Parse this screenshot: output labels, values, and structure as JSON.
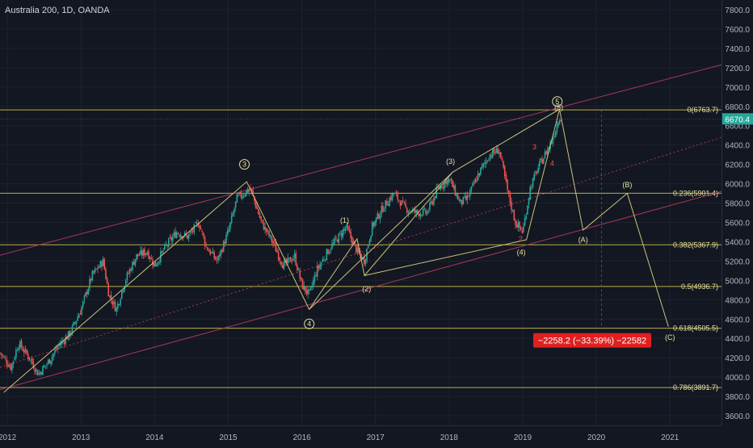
{
  "header": {
    "symbol_title": "Australia 200, 1D, OANDA"
  },
  "colors": {
    "background": "#131722",
    "grid": "#1e222d",
    "axis_text": "#b2b5be",
    "up_candle": "#26a69a",
    "down_candle": "#ef5350",
    "fib_line": "#b7b14a",
    "channel_line": "#a8385a",
    "wave_line": "#c9c27a",
    "price_badge": "#26a69a",
    "measure_badge": "#e02020"
  },
  "chart_data": {
    "type": "candlestick",
    "title": "Australia 200, 1D, OANDA",
    "xlabel": "",
    "ylabel": "",
    "xlim": [
      2011.9,
      2021.7
    ],
    "ylim": [
      3500,
      7900
    ],
    "grid": true,
    "y_ticks": [
      "3600.0",
      "3800.0",
      "4000.0",
      "4200.0",
      "4400.0",
      "4600.0",
      "4800.0",
      "5000.0",
      "5200.0",
      "5400.0",
      "5600.0",
      "5800.0",
      "6000.0",
      "6200.0",
      "6400.0",
      "6600.0",
      "6800.0",
      "7000.0",
      "7200.0",
      "7400.0",
      "7600.0",
      "7800.0"
    ],
    "x_ticks": [
      {
        "label": "2012",
        "x": 2012.0
      },
      {
        "label": "2013",
        "x": 2013.0
      },
      {
        "label": "2014",
        "x": 2014.0
      },
      {
        "label": "2015",
        "x": 2015.0
      },
      {
        "label": "2016",
        "x": 2016.0
      },
      {
        "label": "2017",
        "x": 2017.0
      },
      {
        "label": "2018",
        "x": 2018.0
      },
      {
        "label": "2019",
        "x": 2019.0
      },
      {
        "label": "2020",
        "x": 2020.0
      },
      {
        "label": "2021",
        "x": 2021.0
      }
    ],
    "price_path": [
      [
        2011.9,
        4250
      ],
      [
        2012.05,
        4100
      ],
      [
        2012.15,
        4350
      ],
      [
        2012.3,
        4200
      ],
      [
        2012.42,
        4030
      ],
      [
        2012.55,
        4150
      ],
      [
        2012.7,
        4330
      ],
      [
        2012.85,
        4450
      ],
      [
        2013.0,
        4700
      ],
      [
        2013.15,
        5050
      ],
      [
        2013.3,
        5200
      ],
      [
        2013.38,
        4850
      ],
      [
        2013.48,
        4700
      ],
      [
        2013.6,
        5000
      ],
      [
        2013.75,
        5250
      ],
      [
        2013.9,
        5300
      ],
      [
        2014.0,
        5150
      ],
      [
        2014.15,
        5350
      ],
      [
        2014.3,
        5500
      ],
      [
        2014.45,
        5450
      ],
      [
        2014.6,
        5600
      ],
      [
        2014.7,
        5350
      ],
      [
        2014.85,
        5200
      ],
      [
        2015.0,
        5500
      ],
      [
        2015.12,
        5850
      ],
      [
        2015.3,
        5950
      ],
      [
        2015.45,
        5600
      ],
      [
        2015.6,
        5400
      ],
      [
        2015.75,
        5150
      ],
      [
        2015.9,
        5250
      ],
      [
        2016.0,
        4950
      ],
      [
        2016.1,
        4850
      ],
      [
        2016.2,
        5100
      ],
      [
        2016.35,
        5300
      ],
      [
        2016.5,
        5450
      ],
      [
        2016.6,
        5550
      ],
      [
        2016.75,
        5300
      ],
      [
        2016.85,
        5200
      ],
      [
        2016.95,
        5550
      ],
      [
        2017.1,
        5750
      ],
      [
        2017.25,
        5900
      ],
      [
        2017.4,
        5750
      ],
      [
        2017.55,
        5700
      ],
      [
        2017.7,
        5700
      ],
      [
        2017.85,
        5950
      ],
      [
        2018.0,
        6050
      ],
      [
        2018.15,
        5800
      ],
      [
        2018.25,
        5850
      ],
      [
        2018.4,
        6100
      ],
      [
        2018.55,
        6300
      ],
      [
        2018.68,
        6350
      ],
      [
        2018.8,
        5900
      ],
      [
        2018.9,
        5600
      ],
      [
        2019.0,
        5500
      ],
      [
        2019.1,
        5950
      ],
      [
        2019.2,
        6150
      ],
      [
        2019.3,
        6300
      ],
      [
        2019.4,
        6450
      ],
      [
        2019.5,
        6700
      ],
      [
        2019.52,
        6670.4
      ]
    ],
    "last_price": "6670.4",
    "fib_levels": [
      {
        "label": "0(6763.7)",
        "value": 6763.7
      },
      {
        "label": "0.236(5901.4)",
        "value": 5901.4
      },
      {
        "label": "0.382(5367.9)",
        "value": 5367.9
      },
      {
        "label": "0.5(4936.7)",
        "value": 4936.7
      },
      {
        "label": "0.618(4505.5)",
        "value": 4505.5
      },
      {
        "label": "0.786(3891.7)",
        "value": 3891.7
      }
    ],
    "fib_x_start": 2011.9,
    "channel_lines": [
      {
        "style": "solid",
        "points": [
          [
            2011.9,
            5260
          ],
          [
            2021.7,
            7230
          ]
        ]
      },
      {
        "style": "dotted",
        "points": [
          [
            2011.9,
            4100
          ],
          [
            2021.7,
            6480
          ]
        ]
      },
      {
        "style": "solid",
        "points": [
          [
            2011.9,
            3870
          ],
          [
            2021.7,
            5920
          ]
        ]
      }
    ],
    "wave_lines": [
      {
        "points": [
          [
            2011.95,
            3840
          ],
          [
            2015.25,
            6020
          ],
          [
            2016.1,
            4700
          ],
          [
            2018.05,
            6120
          ],
          [
            2019.5,
            6770
          ]
        ]
      },
      {
        "points": [
          [
            2016.1,
            4700
          ],
          [
            2016.75,
            5430
          ],
          [
            2016.85,
            5050
          ],
          [
            2018.05,
            6120
          ]
        ]
      },
      {
        "points": [
          [
            2016.85,
            5050
          ],
          [
            2019.05,
            5420
          ],
          [
            2019.5,
            6770
          ]
        ]
      },
      {
        "points": [
          [
            2019.5,
            6770
          ],
          [
            2019.82,
            5520
          ],
          [
            2020.42,
            5900
          ],
          [
            2020.98,
            4520
          ]
        ]
      }
    ],
    "wave_labels": [
      {
        "text": "3",
        "x": 2015.22,
        "y": 6200,
        "circled": true
      },
      {
        "text": "4",
        "x": 2016.1,
        "y": 4550,
        "circled": true
      },
      {
        "text": "5",
        "x": 2019.47,
        "y": 6850,
        "circled": true
      },
      {
        "text": "(1)",
        "x": 2016.58,
        "y": 5620,
        "circled": false
      },
      {
        "text": "(2)",
        "x": 2016.88,
        "y": 4910,
        "circled": false
      },
      {
        "text": "(3)",
        "x": 2018.02,
        "y": 6230,
        "circled": false
      },
      {
        "text": "(4)",
        "x": 2018.98,
        "y": 5290,
        "circled": false
      },
      {
        "text": "(5)",
        "x": 2019.49,
        "y": 6790,
        "circled": false
      },
      {
        "text": "(A)",
        "x": 2019.82,
        "y": 5420,
        "circled": false
      },
      {
        "text": "(B)",
        "x": 2020.42,
        "y": 5990,
        "circled": false
      },
      {
        "text": "(C)",
        "x": 2021.0,
        "y": 4410,
        "circled": false
      },
      {
        "text": "2",
        "x": 2018.97,
        "y": 5430,
        "circled": false,
        "color": "#ef5350"
      },
      {
        "text": "3",
        "x": 2019.16,
        "y": 6380,
        "circled": false,
        "color": "#ef5350"
      },
      {
        "text": "4",
        "x": 2019.4,
        "y": 6210,
        "circled": false,
        "color": "#ef5350"
      }
    ],
    "measure": {
      "text": "−2258.2 (−33.39%) −22582",
      "x_from": 2019.5,
      "x_to": 2020.98,
      "y_value": 4380
    }
  }
}
